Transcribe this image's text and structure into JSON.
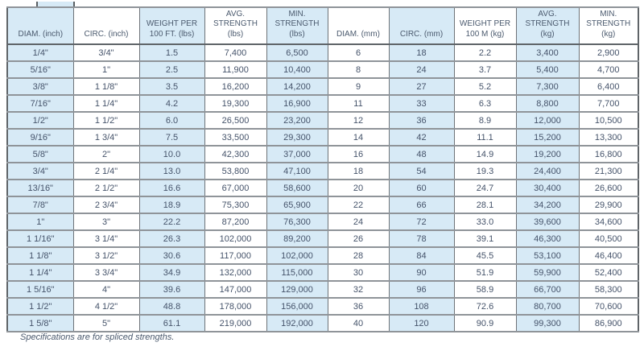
{
  "table": {
    "columns": [
      "DIAM. (inch)",
      "CIRC. (inch)",
      "WEIGHT PER\n100 FT. (lbs)",
      "AVG.\nSTRENGTH\n(lbs)",
      "MIN.\nSTRENGTH\n(lbs)",
      "DIAM. (mm)",
      "CIRC. (mm)",
      "WEIGHT PER\n100 M (kg)",
      "AVG.\nSTRENGTH (kg)",
      "MIN.\nSTRENGTH (kg)"
    ],
    "rows": [
      [
        "1/4\"",
        "3/4\"",
        "1.5",
        "7,400",
        "6,500",
        "6",
        "18",
        "2.2",
        "3,400",
        "2,900"
      ],
      [
        "5/16\"",
        "1\"",
        "2.5",
        "11,900",
        "10,400",
        "8",
        "24",
        "3.7",
        "5,400",
        "4,700"
      ],
      [
        "3/8\"",
        "1 1/8\"",
        "3.5",
        "16,200",
        "14,200",
        "9",
        "27",
        "5.2",
        "7,300",
        "6,400"
      ],
      [
        "7/16\"",
        "1 1/4\"",
        "4.2",
        "19,300",
        "16,900",
        "11",
        "33",
        "6.3",
        "8,800",
        "7,700"
      ],
      [
        "1/2\"",
        "1 1/2\"",
        "6.0",
        "26,500",
        "23,200",
        "12",
        "36",
        "8.9",
        "12,000",
        "10,500"
      ],
      [
        "9/16\"",
        "1 3/4\"",
        "7.5",
        "33,500",
        "29,300",
        "14",
        "42",
        "11.1",
        "15,200",
        "13,300"
      ],
      [
        "5/8\"",
        "2\"",
        "10.0",
        "42,300",
        "37,000",
        "16",
        "48",
        "14.9",
        "19,200",
        "16,800"
      ],
      [
        "3/4\"",
        "2 1/4\"",
        "13.0",
        "53,800",
        "47,100",
        "18",
        "54",
        "19.3",
        "24,400",
        "21,300"
      ],
      [
        "13/16\"",
        "2 1/2\"",
        "16.6",
        "67,000",
        "58,600",
        "20",
        "60",
        "24.7",
        "30,400",
        "26,600"
      ],
      [
        "7/8\"",
        "2 3/4\"",
        "18.9",
        "75,300",
        "65,900",
        "22",
        "66",
        "28.1",
        "34,200",
        "29,900"
      ],
      [
        "1\"",
        "3\"",
        "22.2",
        "87,200",
        "76,300",
        "24",
        "72",
        "33.0",
        "39,600",
        "34,600"
      ],
      [
        "1 1/16\"",
        "3 1/4\"",
        "26.3",
        "102,000",
        "89,200",
        "26",
        "78",
        "39.1",
        "46,300",
        "40,500"
      ],
      [
        "1 1/8\"",
        "3 1/2\"",
        "30.6",
        "117,000",
        "102,000",
        "28",
        "84",
        "45.5",
        "53,100",
        "46,400"
      ],
      [
        "1 1/4\"",
        "3 3/4\"",
        "34.9",
        "132,000",
        "115,000",
        "30",
        "90",
        "51.9",
        "59,900",
        "52,400"
      ],
      [
        "1 5/16\"",
        "4\"",
        "39.6",
        "147,000",
        "129,000",
        "32",
        "96",
        "58.9",
        "66,700",
        "58,300"
      ],
      [
        "1 1/2\"",
        "4 1/2\"",
        "48.8",
        "178,000",
        "156,000",
        "36",
        "108",
        "72.6",
        "80,700",
        "70,600"
      ],
      [
        "1 5/8\"",
        "5\"",
        "61.1",
        "219,000",
        "192,000",
        "40",
        "120",
        "90.9",
        "99,300",
        "86,900"
      ]
    ]
  },
  "footnote": "Specifications are for spliced strengths.",
  "colors": {
    "stripe_blue": "#d7eaf6",
    "text": "#45536a",
    "border_outer": "#5f6468"
  }
}
